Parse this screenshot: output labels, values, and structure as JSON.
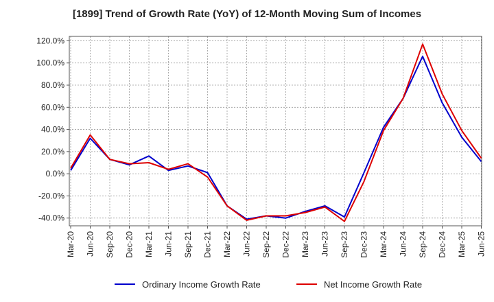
{
  "chart_data": {
    "type": "line",
    "title": "[1899]  Trend of Growth Rate (YoY) of 12-Month Moving Sum of Incomes",
    "xlabel": "",
    "ylabel": "",
    "x_ticks": [
      "Mar-20",
      "Jun-20",
      "Sep-20",
      "Dec-20",
      "Mar-21",
      "Jun-21",
      "Sep-21",
      "Dec-21",
      "Mar-22",
      "Jun-22",
      "Sep-22",
      "Dec-22",
      "Mar-23",
      "Jun-23",
      "Sep-23",
      "Dec-23",
      "Mar-24",
      "Jun-24",
      "Sep-24",
      "Dec-24",
      "Mar-25",
      "Jun-25"
    ],
    "y_ticks": [
      "120.0%",
      "100.0%",
      "80.0%",
      "60.0%",
      "40.0%",
      "20.0%",
      "0.0%",
      "-20.0%",
      "-40.0%"
    ],
    "y_tick_values": [
      120,
      100,
      80,
      60,
      40,
      20,
      0,
      -20,
      -40
    ],
    "ylim": [
      -47,
      124
    ],
    "grid": true,
    "legend_position": "bottom",
    "series": [
      {
        "name": "Ordinary Income Growth Rate",
        "color": "#0000cc",
        "values": [
          3,
          32,
          13,
          8,
          16,
          3,
          7,
          1,
          -29,
          -41,
          -38,
          -40,
          -34,
          -29,
          -39,
          1,
          42,
          68,
          106,
          64,
          33,
          11
        ]
      },
      {
        "name": "Net Income Growth Rate",
        "color": "#dd0000",
        "values": [
          5,
          35,
          13,
          9,
          10,
          4,
          9,
          -3,
          -29,
          -42,
          -38,
          -38,
          -35,
          -30,
          -43,
          -7,
          39,
          68,
          117,
          72,
          39,
          14
        ]
      }
    ]
  }
}
